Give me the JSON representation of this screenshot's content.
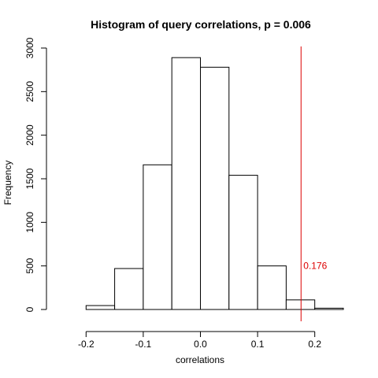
{
  "chart_data": {
    "type": "bar",
    "title": "Histogram of query correlations, p = 0.006",
    "xlabel": "correlations",
    "ylabel": "Frequency",
    "xlim": [
      -0.25,
      0.25
    ],
    "ylim": [
      0,
      3000
    ],
    "bins": [
      {
        "x0": -0.2,
        "x1": -0.15,
        "count": 45
      },
      {
        "x0": -0.15,
        "x1": -0.1,
        "count": 470
      },
      {
        "x0": -0.1,
        "x1": -0.05,
        "count": 1660
      },
      {
        "x0": -0.05,
        "x1": 0.0,
        "count": 2890
      },
      {
        "x0": 0.0,
        "x1": 0.05,
        "count": 2780
      },
      {
        "x0": 0.05,
        "x1": 0.1,
        "count": 1540
      },
      {
        "x0": 0.1,
        "x1": 0.15,
        "count": 500
      },
      {
        "x0": 0.15,
        "x1": 0.2,
        "count": 110
      },
      {
        "x0": 0.2,
        "x1": 0.25,
        "count": 15
      }
    ],
    "x_ticks": [
      {
        "value": -0.2,
        "label": "-0.2"
      },
      {
        "value": -0.1,
        "label": "-0.1"
      },
      {
        "value": 0.0,
        "label": "0.0"
      },
      {
        "value": 0.1,
        "label": "0.1"
      },
      {
        "value": 0.2,
        "label": "0.2"
      }
    ],
    "y_ticks": [
      {
        "value": 0,
        "label": "0"
      },
      {
        "value": 500,
        "label": "500"
      },
      {
        "value": 1000,
        "label": "1000"
      },
      {
        "value": 1500,
        "label": "1500"
      },
      {
        "value": 2000,
        "label": "2000"
      },
      {
        "value": 2500,
        "label": "2500"
      },
      {
        "value": 3000,
        "label": "3000"
      }
    ],
    "reference_line": {
      "value": 0.176,
      "label": "0.176",
      "color": "#dd0000"
    },
    "grid": false
  }
}
